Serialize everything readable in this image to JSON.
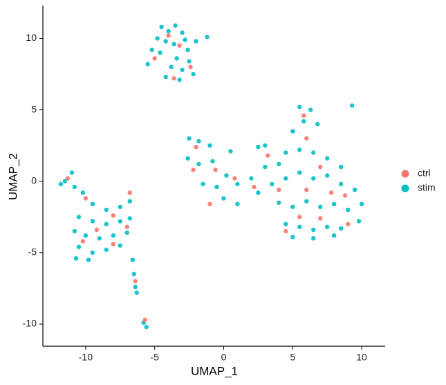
{
  "chart_data": {
    "type": "scatter",
    "x_label": "UMAP_1",
    "y_label": "UMAP_2",
    "xlim": [
      -13.1,
      11.7
    ],
    "ylim": [
      -11.55,
      12.3
    ],
    "xticks": [
      -10,
      -5,
      0,
      5,
      10
    ],
    "yticks": [
      -10,
      -5,
      0,
      5,
      10
    ],
    "legend": "right",
    "series": [
      {
        "name": "stim",
        "color": "#00BFC4",
        "x": [
          -4.5,
          -4,
          -3.5,
          -3,
          -4.8,
          -4.2,
          -3.6,
          -2.8,
          -2,
          -1.2,
          -5.2,
          -4.6,
          -3.4,
          -2.5,
          -3.8,
          -3,
          -2.2,
          -4.2,
          -3.2,
          -5.5,
          -2.6,
          -11.5,
          -11,
          -10.8,
          -10.2,
          -9.5,
          -8.5,
          -7.5,
          -6.8,
          -10.5,
          -9.5,
          -8.5,
          -7.5,
          -6.8,
          -10.8,
          -10,
          -9,
          -8,
          -7,
          -10.5,
          -9.5,
          -8.5,
          -7.5,
          -10.7,
          -9.8,
          -6.6,
          -6.5,
          -6.4,
          -6.3,
          -5.6,
          -5.8,
          -11.8,
          -2.5,
          -1.8,
          -1,
          -2.6,
          -1.8,
          -0.8,
          0.2,
          1,
          2,
          -1.5,
          -0.5,
          0,
          1,
          2.5,
          3.5,
          4.5,
          5.5,
          6.5,
          7.5,
          8.5,
          9.5,
          10,
          4,
          5,
          6,
          7,
          8,
          9,
          4.5,
          5.5,
          6.5,
          7.5,
          8.5,
          9.8,
          5,
          6.5,
          8,
          4.5,
          5.5,
          6.5,
          7.5,
          8.5,
          5,
          5.8,
          6.3,
          5.5,
          6.8,
          3,
          2.5,
          4,
          3,
          9.3,
          0.5
        ],
        "y": [
          10.8,
          10.5,
          10.9,
          10.4,
          10,
          9.8,
          9.6,
          9.9,
          9.8,
          10.1,
          9.2,
          9,
          8.6,
          8.4,
          8,
          7.8,
          7.5,
          7.3,
          7.1,
          8.2,
          9.2,
          0,
          0.6,
          -0.4,
          -0.8,
          -1.6,
          -2,
          -1.8,
          -1.4,
          -2.5,
          -2.8,
          -3,
          -2.8,
          -2.6,
          -3.5,
          -3.8,
          -4,
          -3.8,
          -3.6,
          -4.6,
          -5,
          -4.8,
          -4.5,
          -5.4,
          -5.5,
          -5.5,
          -6.5,
          -7.4,
          -7.8,
          -10.2,
          -9.9,
          -0.2,
          3,
          2.8,
          2.5,
          1.6,
          1.2,
          1.4,
          0.4,
          -0.2,
          0.2,
          -0.2,
          -0.4,
          -1.2,
          -1.6,
          -0.8,
          -0.2,
          0.2,
          0.6,
          0.2,
          0.4,
          -0.2,
          -0.6,
          -1.6,
          -1.5,
          -1.8,
          -1.4,
          -1.8,
          -1.6,
          -2,
          -3,
          -3.2,
          -3.4,
          -3.2,
          -3.3,
          -2.8,
          -3.9,
          -4,
          -3.8,
          2,
          2.2,
          2,
          1.6,
          1,
          3.5,
          4.2,
          5,
          5.2,
          4,
          2.5,
          2.4,
          1.2,
          1,
          5.3,
          2.1
        ]
      },
      {
        "name": "ctrl",
        "color": "#F8766D",
        "x": [
          -4,
          -3.2,
          -2.4,
          -5,
          -3.6,
          -11.3,
          -10,
          -8,
          -7,
          -9.2,
          -10.2,
          -8,
          -6.8,
          -6.4,
          -5.7,
          -2,
          -2.2,
          -0.6,
          0.8,
          -1,
          2.2,
          4,
          6,
          7,
          8.8,
          5.5,
          7,
          9,
          6,
          5.8,
          4.5,
          3.2,
          7.8
        ],
        "y": [
          10.2,
          9.5,
          8,
          8.6,
          7.2,
          0.2,
          -1.2,
          -2.4,
          -3.2,
          -3.4,
          -4.2,
          -4.4,
          -0.8,
          -7,
          -9.7,
          2.4,
          0.8,
          0.8,
          0.2,
          -1.6,
          -0.4,
          -0.6,
          -0.6,
          1,
          -1,
          -2.5,
          -2.6,
          -3,
          3,
          4.6,
          -3.5,
          1.8,
          -0.8
        ]
      }
    ]
  }
}
